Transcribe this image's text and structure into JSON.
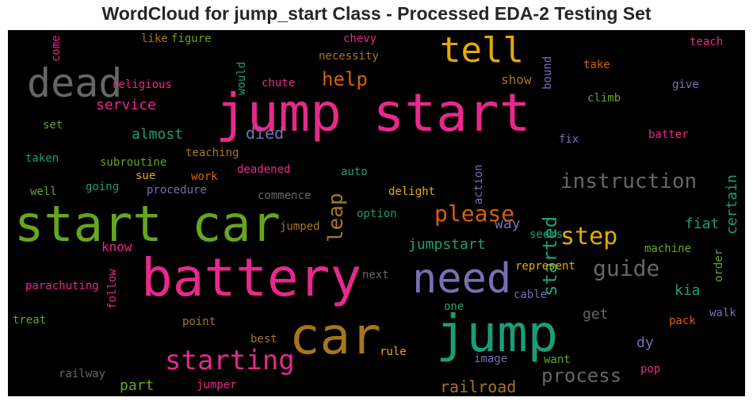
{
  "title": "WordCloud for jump_start Class - Processed EDA-2 Testing Set",
  "palette": {
    "pink": "#e7298a",
    "green": "#66a61e",
    "teal": "#1b9e77",
    "orange": "#d95f02",
    "purple": "#7570b3",
    "gold": "#e6ab02",
    "brown": "#a6761d",
    "gray": "#666666"
  },
  "words": [
    {
      "text": "jump start",
      "color": "pink"
    },
    {
      "text": "battery",
      "color": "pink"
    },
    {
      "text": "start car",
      "color": "green"
    },
    {
      "text": "car",
      "color": "brown"
    },
    {
      "text": "jump",
      "color": "teal"
    },
    {
      "text": "dead",
      "color": "gray"
    },
    {
      "text": "tell",
      "color": "gold"
    },
    {
      "text": "need",
      "color": "purple"
    },
    {
      "text": "starting",
      "color": "pink"
    },
    {
      "text": "please",
      "color": "orange"
    },
    {
      "text": "step",
      "color": "gold"
    },
    {
      "text": "instruction",
      "color": "gray"
    },
    {
      "text": "guide",
      "color": "gray"
    },
    {
      "text": "process",
      "color": "gray"
    },
    {
      "text": "help",
      "color": "orange"
    },
    {
      "text": "leap",
      "color": "brown"
    },
    {
      "text": "started",
      "color": "teal"
    },
    {
      "text": "died",
      "color": "purple"
    },
    {
      "text": "railroad",
      "color": "brown"
    },
    {
      "text": "certain",
      "color": "teal"
    },
    {
      "text": "fiat",
      "color": "teal"
    },
    {
      "text": "service",
      "color": "pink"
    },
    {
      "text": "almost",
      "color": "teal"
    },
    {
      "text": "jumpstart",
      "color": "teal"
    },
    {
      "text": "show",
      "color": "brown"
    },
    {
      "text": "way",
      "color": "purple"
    },
    {
      "text": "know",
      "color": "pink"
    },
    {
      "text": "kia",
      "color": "teal"
    },
    {
      "text": "part",
      "color": "green"
    },
    {
      "text": "get",
      "color": "gray"
    },
    {
      "text": "dy",
      "color": "purple"
    },
    {
      "text": "figure",
      "color": "green"
    },
    {
      "text": "like",
      "color": "brown"
    },
    {
      "text": "come",
      "color": "pink"
    },
    {
      "text": "would",
      "color": "teal"
    },
    {
      "text": "chevy",
      "color": "pink"
    },
    {
      "text": "necessity",
      "color": "brown"
    },
    {
      "text": "bound",
      "color": "purple"
    },
    {
      "text": "teach",
      "color": "pink"
    },
    {
      "text": "take",
      "color": "orange"
    },
    {
      "text": "religious",
      "color": "pink"
    },
    {
      "text": "chute",
      "color": "pink"
    },
    {
      "text": "give",
      "color": "purple"
    },
    {
      "text": "climb",
      "color": "green"
    },
    {
      "text": "set",
      "color": "green"
    },
    {
      "text": "teaching",
      "color": "brown"
    },
    {
      "text": "fix",
      "color": "purple"
    },
    {
      "text": "batter",
      "color": "pink"
    },
    {
      "text": "taken",
      "color": "teal"
    },
    {
      "text": "subroutine",
      "color": "green"
    },
    {
      "text": "deadened",
      "color": "pink"
    },
    {
      "text": "auto",
      "color": "teal"
    },
    {
      "text": "action",
      "color": "purple"
    },
    {
      "text": "sue",
      "color": "gold"
    },
    {
      "text": "work",
      "color": "orange"
    },
    {
      "text": "well",
      "color": "green"
    },
    {
      "text": "going",
      "color": "teal"
    },
    {
      "text": "procedure",
      "color": "purple"
    },
    {
      "text": "commence",
      "color": "gray"
    },
    {
      "text": "delight",
      "color": "gold"
    },
    {
      "text": "option",
      "color": "teal"
    },
    {
      "text": "jumped",
      "color": "brown"
    },
    {
      "text": "seems",
      "color": "teal"
    },
    {
      "text": "machine",
      "color": "green"
    },
    {
      "text": "order",
      "color": "green"
    },
    {
      "text": "parachuting",
      "color": "pink"
    },
    {
      "text": "follow",
      "color": "pink"
    },
    {
      "text": "next",
      "color": "gray"
    },
    {
      "text": "represent",
      "color": "gold"
    },
    {
      "text": "cable",
      "color": "purple"
    },
    {
      "text": "one",
      "color": "teal"
    },
    {
      "text": "treat",
      "color": "green"
    },
    {
      "text": "point",
      "color": "brown"
    },
    {
      "text": "walk",
      "color": "purple"
    },
    {
      "text": "pack",
      "color": "orange"
    },
    {
      "text": "best",
      "color": "brown"
    },
    {
      "text": "rule",
      "color": "gold"
    },
    {
      "text": "image",
      "color": "purple"
    },
    {
      "text": "want",
      "color": "green"
    },
    {
      "text": "pop",
      "color": "pink"
    },
    {
      "text": "railway",
      "color": "gray"
    },
    {
      "text": "jumper",
      "color": "pink"
    }
  ]
}
